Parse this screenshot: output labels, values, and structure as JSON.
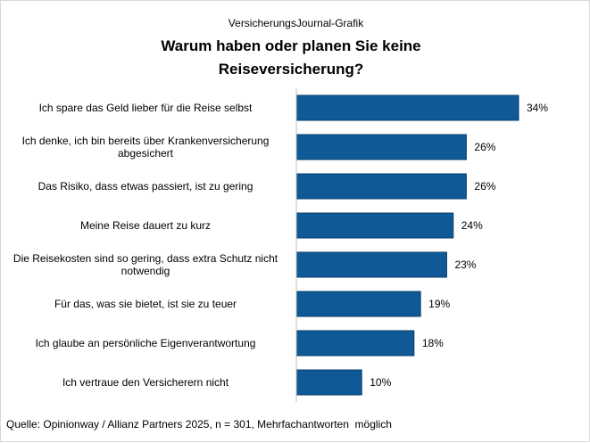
{
  "header": {
    "credit": "VersicherungsJournal-Grafik",
    "title_line1": "Warum haben oder planen Sie keine",
    "title_line2": "Reiseversicherung?"
  },
  "footer": {
    "source": "Quelle: Opinionway / Allianz Partners 2025, n = 301, Mehrfachantworten  möglich"
  },
  "colors": {
    "bar": "#0f5a96",
    "bar_border": "#0a3f6b"
  },
  "chart_data": {
    "type": "bar",
    "orientation": "horizontal",
    "title": "Warum haben oder planen Sie keine Reiseversicherung?",
    "xlabel": "",
    "ylabel": "",
    "xlim": [
      0,
      34
    ],
    "unit": "%",
    "categories": [
      "Ich spare das Geld lieber für die Reise selbst",
      "Ich denke, ich bin bereits über Krankenversicherung abgesichert",
      "Das Risiko, dass etwas passiert, ist zu gering",
      "Meine Reise dauert zu kurz",
      "Die Reisekosten sind so gering, dass extra Schutz nicht notwendig",
      "Für das, was sie bietet, ist sie zu teuer",
      "Ich glaube an persönliche Eigenverantwortung",
      "Ich vertraue den Versicherern nicht"
    ],
    "values": [
      34,
      26,
      26,
      24,
      23,
      19,
      18,
      10
    ],
    "value_labels": [
      "34%",
      "26%",
      "26%",
      "24%",
      "23%",
      "19%",
      "18%",
      "10%"
    ]
  }
}
